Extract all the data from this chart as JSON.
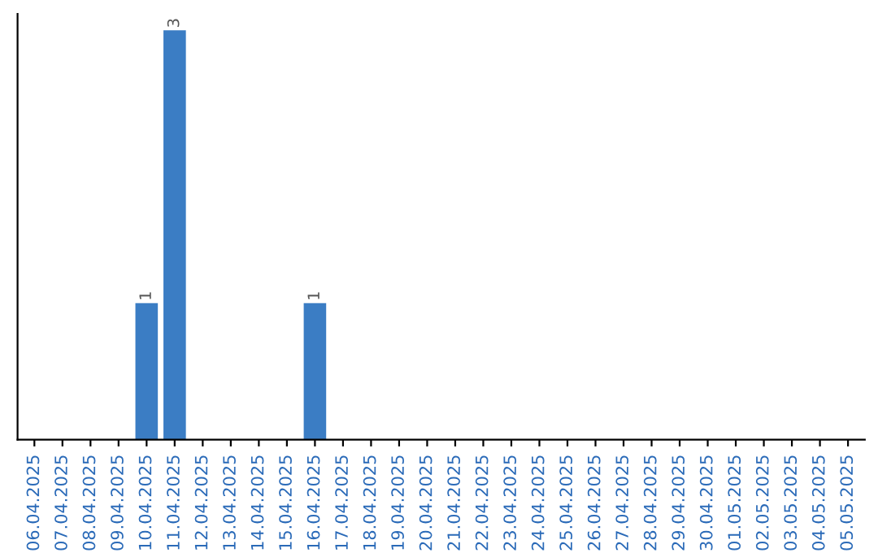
{
  "chart_data": {
    "type": "bar",
    "categories": [
      "06.04.2025",
      "07.04.2025",
      "08.04.2025",
      "09.04.2025",
      "10.04.2025",
      "11.04.2025",
      "12.04.2025",
      "13.04.2025",
      "14.04.2025",
      "15.04.2025",
      "16.04.2025",
      "17.04.2025",
      "18.04.2025",
      "19.04.2025",
      "20.04.2025",
      "21.04.2025",
      "22.04.2025",
      "23.04.2025",
      "24.04.2025",
      "25.04.2025",
      "26.04.2025",
      "27.04.2025",
      "28.04.2025",
      "29.04.2025",
      "30.04.2025",
      "01.05.2025",
      "02.05.2025",
      "03.05.2025",
      "04.05.2025",
      "05.05.2025"
    ],
    "values": [
      0,
      0,
      0,
      0,
      1,
      3,
      0,
      0,
      0,
      0,
      1,
      0,
      0,
      0,
      0,
      0,
      0,
      0,
      0,
      0,
      0,
      0,
      0,
      0,
      0,
      0,
      0,
      0,
      0,
      0
    ],
    "value_labels": [
      null,
      null,
      null,
      null,
      "1",
      "3",
      null,
      null,
      null,
      null,
      "1",
      null,
      null,
      null,
      null,
      null,
      null,
      null,
      null,
      null,
      null,
      null,
      null,
      null,
      null,
      null,
      null,
      null,
      null,
      null
    ],
    "color": "#3b7dc4",
    "tick_labels": "x",
    "grid": false
  }
}
